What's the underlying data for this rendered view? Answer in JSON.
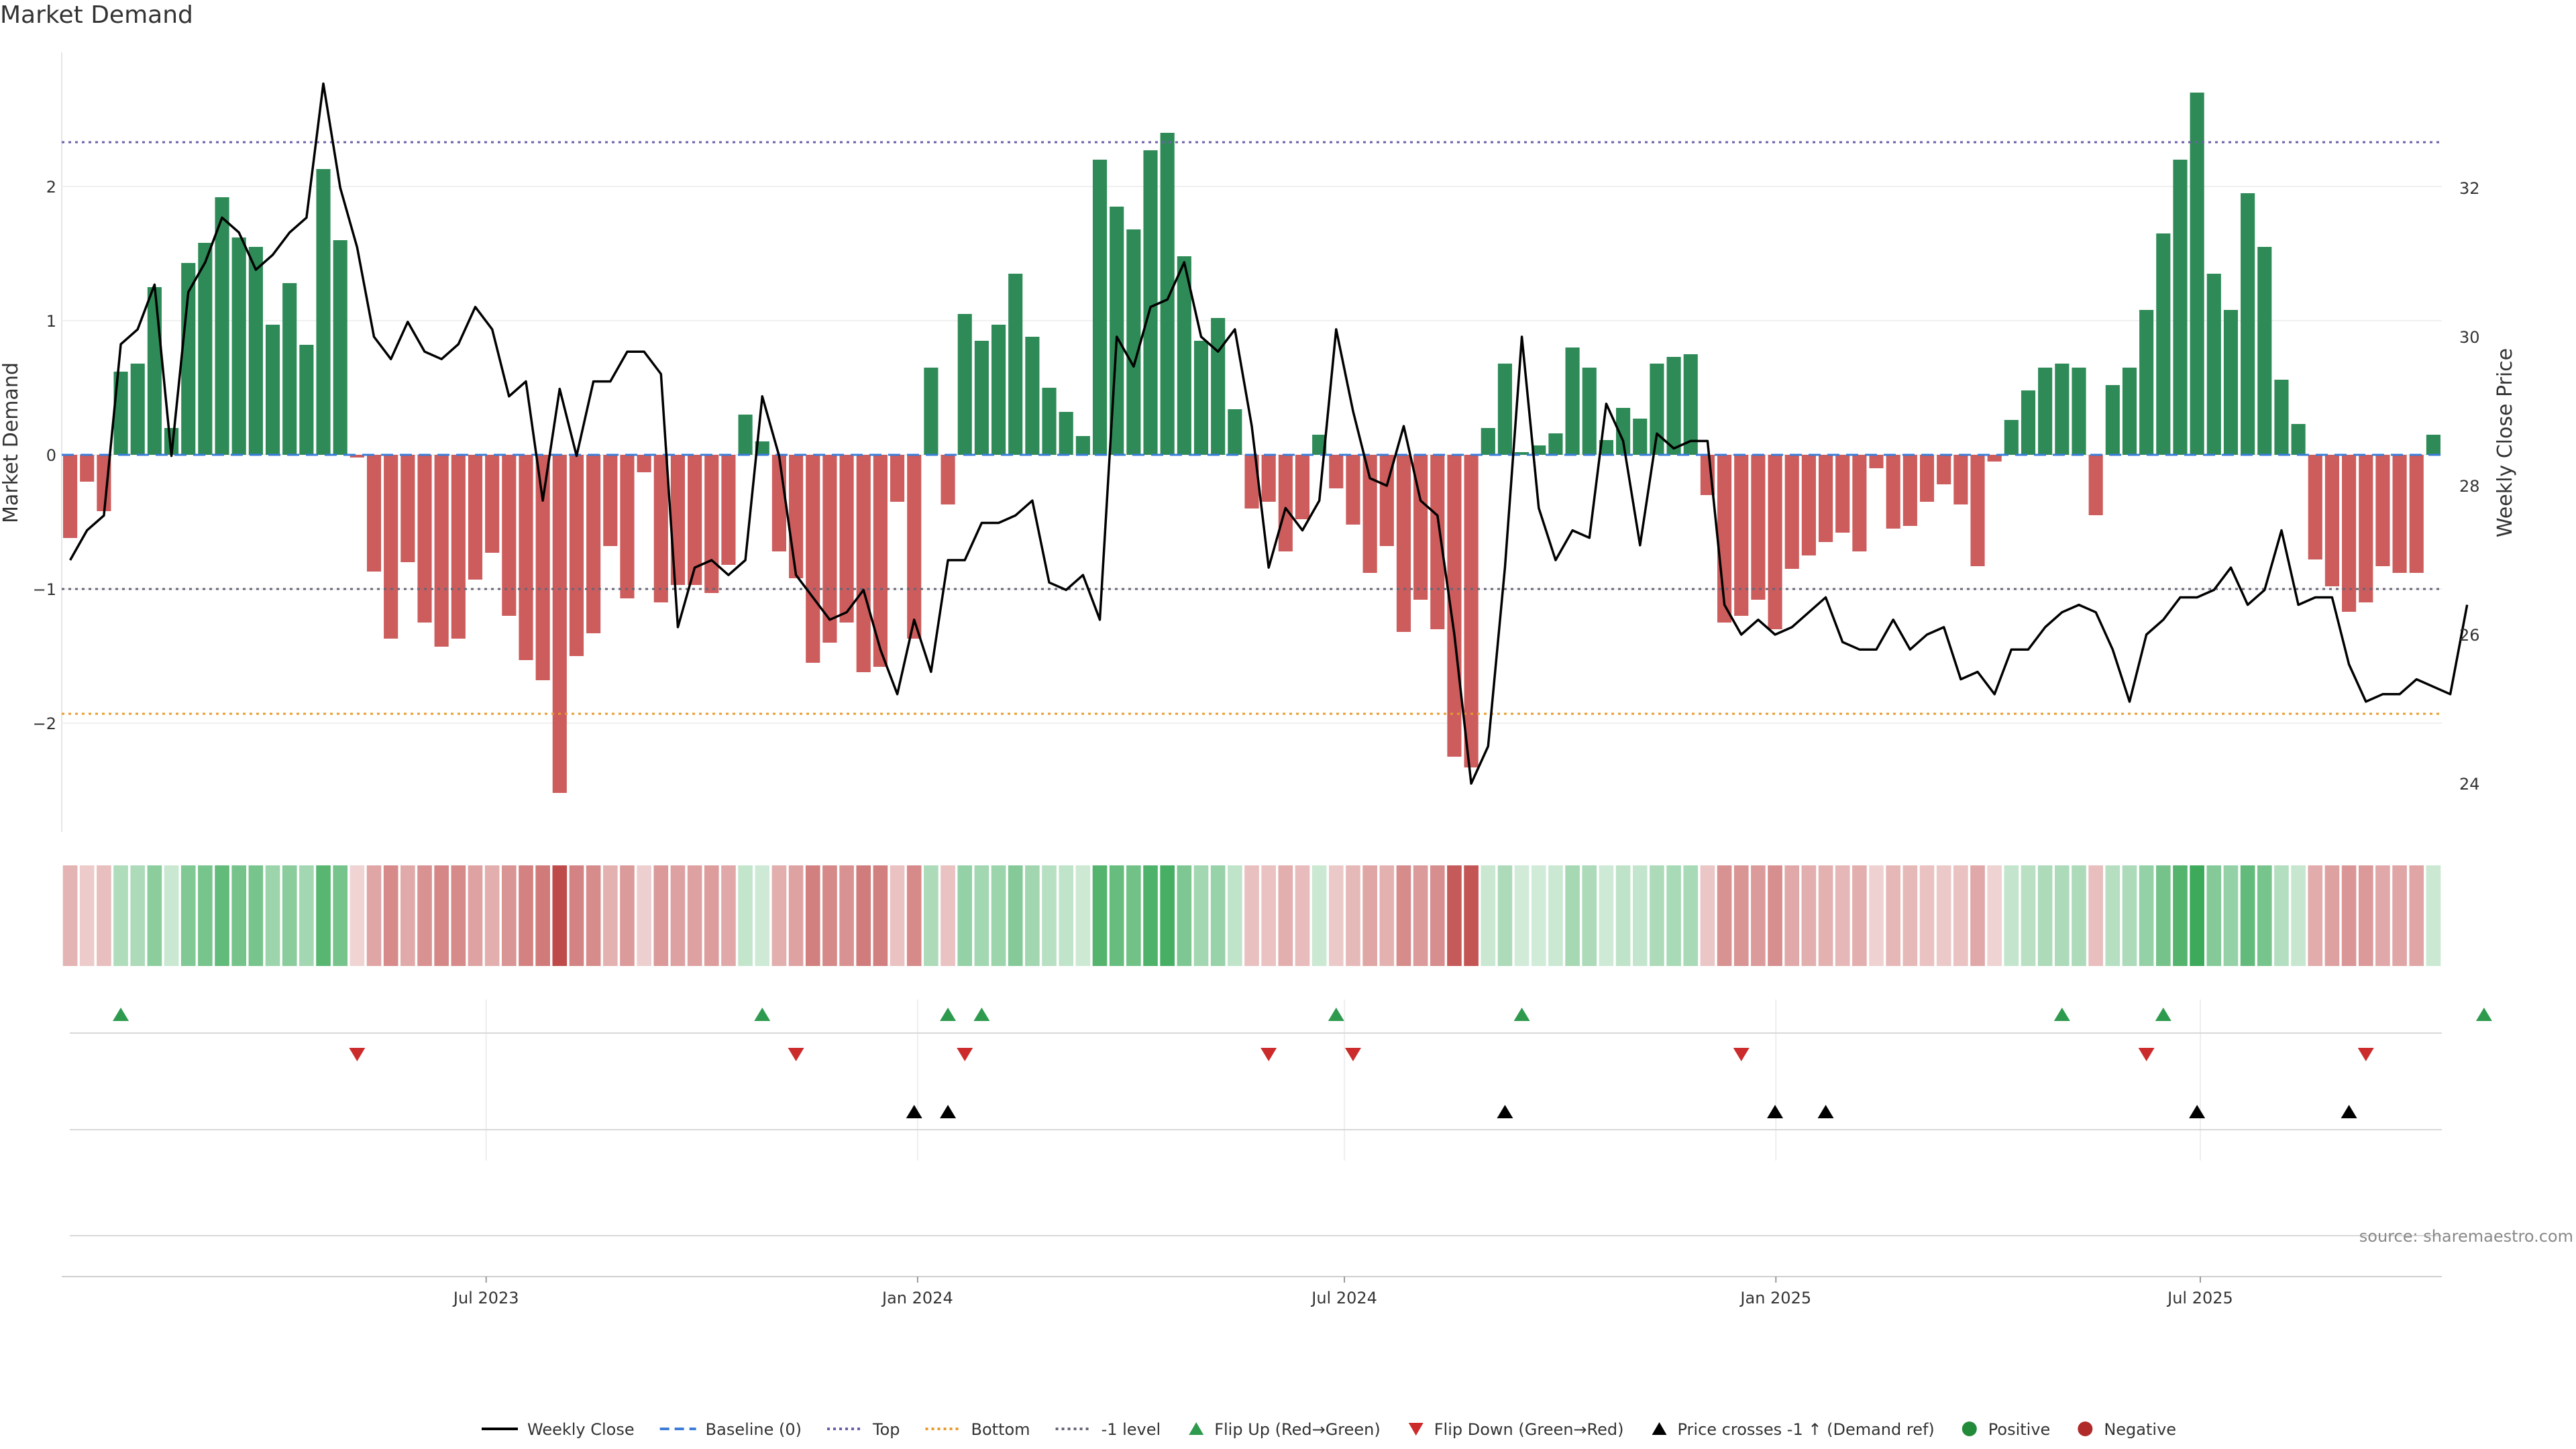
{
  "title": "Market Demand",
  "source_note": "source: sharemaestro.com",
  "chart_data": {
    "type": "bar",
    "title": "Market Demand",
    "ylabel": "Market Demand",
    "ylabel_right": "Weekly Close Price",
    "ylim": [
      -2.8,
      3.0
    ],
    "ylim_right": [
      23.2,
      33.6
    ],
    "yticks": [
      2,
      1,
      0,
      -1,
      -2
    ],
    "yticks_right": [
      32,
      30,
      28,
      26,
      24
    ],
    "ytick_labels": [
      "2",
      "1",
      "0",
      "−1",
      "−2"
    ],
    "ytick_labels_right": [
      "32",
      "30",
      "28",
      "26",
      "24"
    ],
    "x_start": "2023-01-01",
    "x_end": "2025-10-12",
    "xticks": [
      {
        "label": "Jul 2023",
        "date": "2023-07-01"
      },
      {
        "label": "Jan 2024",
        "date": "2024-01-01"
      },
      {
        "label": "Jul 2024",
        "date": "2024-07-01"
      },
      {
        "label": "Jan 2025",
        "date": "2025-01-01"
      },
      {
        "label": "Jul 2025",
        "date": "2025-07-01"
      }
    ],
    "reference_lines": {
      "top": 2.33,
      "bottom": -1.93,
      "minus_one": -1.0,
      "baseline": 0
    },
    "demand": [
      -0.62,
      -0.2,
      -0.42,
      0.62,
      0.68,
      1.25,
      0.2,
      1.43,
      1.58,
      1.92,
      1.62,
      1.55,
      0.97,
      1.28,
      0.82,
      2.13,
      1.6,
      -0.02,
      -0.87,
      -1.37,
      -0.8,
      -1.25,
      -1.43,
      -1.37,
      -0.93,
      -0.73,
      -1.2,
      -1.53,
      -1.68,
      -2.52,
      -1.5,
      -1.33,
      -0.68,
      -1.07,
      -0.13,
      -1.1,
      -0.97,
      -0.97,
      -1.03,
      -0.82,
      0.3,
      0.1,
      -0.72,
      -0.92,
      -1.55,
      -1.4,
      -1.25,
      -1.62,
      -1.58,
      -0.35,
      -1.37,
      0.65,
      -0.37,
      1.05,
      0.85,
      0.97,
      1.35,
      0.88,
      0.5,
      0.32,
      0.14,
      2.2,
      1.85,
      1.68,
      2.27,
      2.4,
      1.48,
      0.85,
      1.02,
      0.34,
      -0.4,
      -0.35,
      -0.72,
      -0.48,
      0.15,
      -0.25,
      -0.52,
      -0.88,
      -0.68,
      -1.32,
      -1.08,
      -1.3,
      -2.25,
      -2.33,
      0.2,
      0.68,
      0.02,
      0.07,
      0.16,
      0.8,
      0.65,
      0.11,
      0.35,
      0.27,
      0.68,
      0.73,
      0.75,
      -0.3,
      -1.25,
      -1.2,
      -1.08,
      -1.3,
      -0.85,
      -0.75,
      -0.65,
      -0.58,
      -0.72,
      -0.1,
      -0.55,
      -0.53,
      -0.35,
      -0.22,
      -0.37,
      -0.83,
      -0.05,
      0.26,
      0.48,
      0.65,
      0.68,
      0.65,
      -0.45,
      0.52,
      0.65,
      1.08,
      1.65,
      2.2,
      2.7,
      1.35,
      1.08,
      1.95,
      1.55,
      0.56,
      0.23,
      -0.78,
      -0.98,
      -1.17,
      -1.1,
      -0.83,
      -0.88,
      -0.88,
      0.15
    ],
    "price": [
      27.0,
      27.4,
      27.6,
      29.9,
      30.1,
      30.7,
      28.4,
      30.6,
      31.0,
      31.6,
      31.4,
      30.9,
      31.1,
      31.4,
      31.6,
      33.4,
      32.0,
      31.2,
      30.0,
      29.7,
      30.2,
      29.8,
      29.7,
      29.9,
      30.4,
      30.1,
      29.2,
      29.4,
      27.8,
      29.3,
      28.4,
      29.4,
      29.4,
      29.8,
      29.8,
      29.5,
      26.1,
      26.9,
      27.0,
      26.8,
      27.0,
      29.2,
      28.4,
      26.8,
      26.5,
      26.2,
      26.3,
      26.6,
      25.8,
      25.2,
      26.2,
      25.5,
      27.0,
      27.0,
      27.5,
      27.5,
      27.6,
      27.8,
      26.7,
      26.6,
      26.8,
      26.2,
      30.0,
      29.6,
      30.4,
      30.5,
      31.0,
      30.0,
      29.8,
      30.1,
      28.8,
      26.9,
      27.7,
      27.4,
      27.8,
      30.1,
      29.0,
      28.1,
      28.0,
      28.8,
      27.8,
      27.6,
      26.0,
      24.0,
      24.5,
      26.9,
      30.0,
      27.7,
      27.0,
      27.4,
      27.3,
      29.1,
      28.6,
      27.2,
      28.7,
      28.5,
      28.6,
      28.6,
      26.4,
      26.0,
      26.2,
      26.0,
      26.1,
      26.3,
      26.5,
      25.9,
      25.8,
      25.8,
      26.2,
      25.8,
      26.0,
      26.1,
      25.4,
      25.5,
      25.2,
      25.8,
      25.8,
      26.1,
      26.3,
      26.4,
      26.3,
      25.8,
      25.1,
      26.0,
      26.2,
      26.5,
      26.5,
      26.6,
      26.9,
      26.4,
      26.6,
      27.4,
      26.4,
      26.5,
      26.5,
      25.6,
      25.1,
      25.2,
      25.2,
      25.4,
      25.3,
      25.2,
      26.4
    ],
    "flip_up": [
      3,
      41,
      52,
      54,
      75,
      86,
      118,
      124,
      143
    ],
    "flip_down": [
      17,
      43,
      53,
      71,
      76,
      99,
      123,
      136
    ],
    "price_crosses": [
      50,
      52,
      85,
      101,
      104,
      126,
      135
    ],
    "legend": [
      {
        "label": "Weekly Close",
        "kind": "line",
        "color": "#000000"
      },
      {
        "label": "Baseline (0)",
        "kind": "dash",
        "color": "#3b7dd8"
      },
      {
        "label": "Top",
        "kind": "dot",
        "color": "#6a5fa8"
      },
      {
        "label": "Bottom",
        "kind": "dot",
        "color": "#e89c2c"
      },
      {
        "label": "-1 level",
        "kind": "dot",
        "color": "#666677"
      },
      {
        "label": "Flip Up (Red→Green)",
        "kind": "tri-up",
        "color": "#2e9a4e"
      },
      {
        "label": "Flip Down (Green→Red)",
        "kind": "tri-down",
        "color": "#cc2b2b"
      },
      {
        "label": "Price crosses -1 ↑ (Demand ref)",
        "kind": "tri-up",
        "color": "#000000"
      },
      {
        "label": "Positive",
        "kind": "dot-marker",
        "color": "#228b3a"
      },
      {
        "label": "Negative",
        "kind": "dot-marker",
        "color": "#b02a2a"
      }
    ],
    "colors": {
      "positive": "#2e8b57",
      "negative": "#cd5c5c"
    }
  }
}
